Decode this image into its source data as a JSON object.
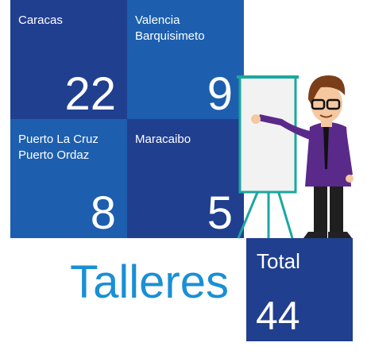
{
  "tiles": [
    {
      "labels": [
        "Caracas"
      ],
      "value": 22
    },
    {
      "labels": [
        "Valencia",
        "Barquisimeto"
      ],
      "value": 9
    },
    {
      "labels": [
        "Puerto La Cruz",
        "Puerto Ordaz"
      ],
      "value": 8
    },
    {
      "labels": [
        "Maracaibo"
      ],
      "value": 5
    }
  ],
  "title": "Talleres",
  "total": {
    "label": "Total",
    "value": 44
  }
}
